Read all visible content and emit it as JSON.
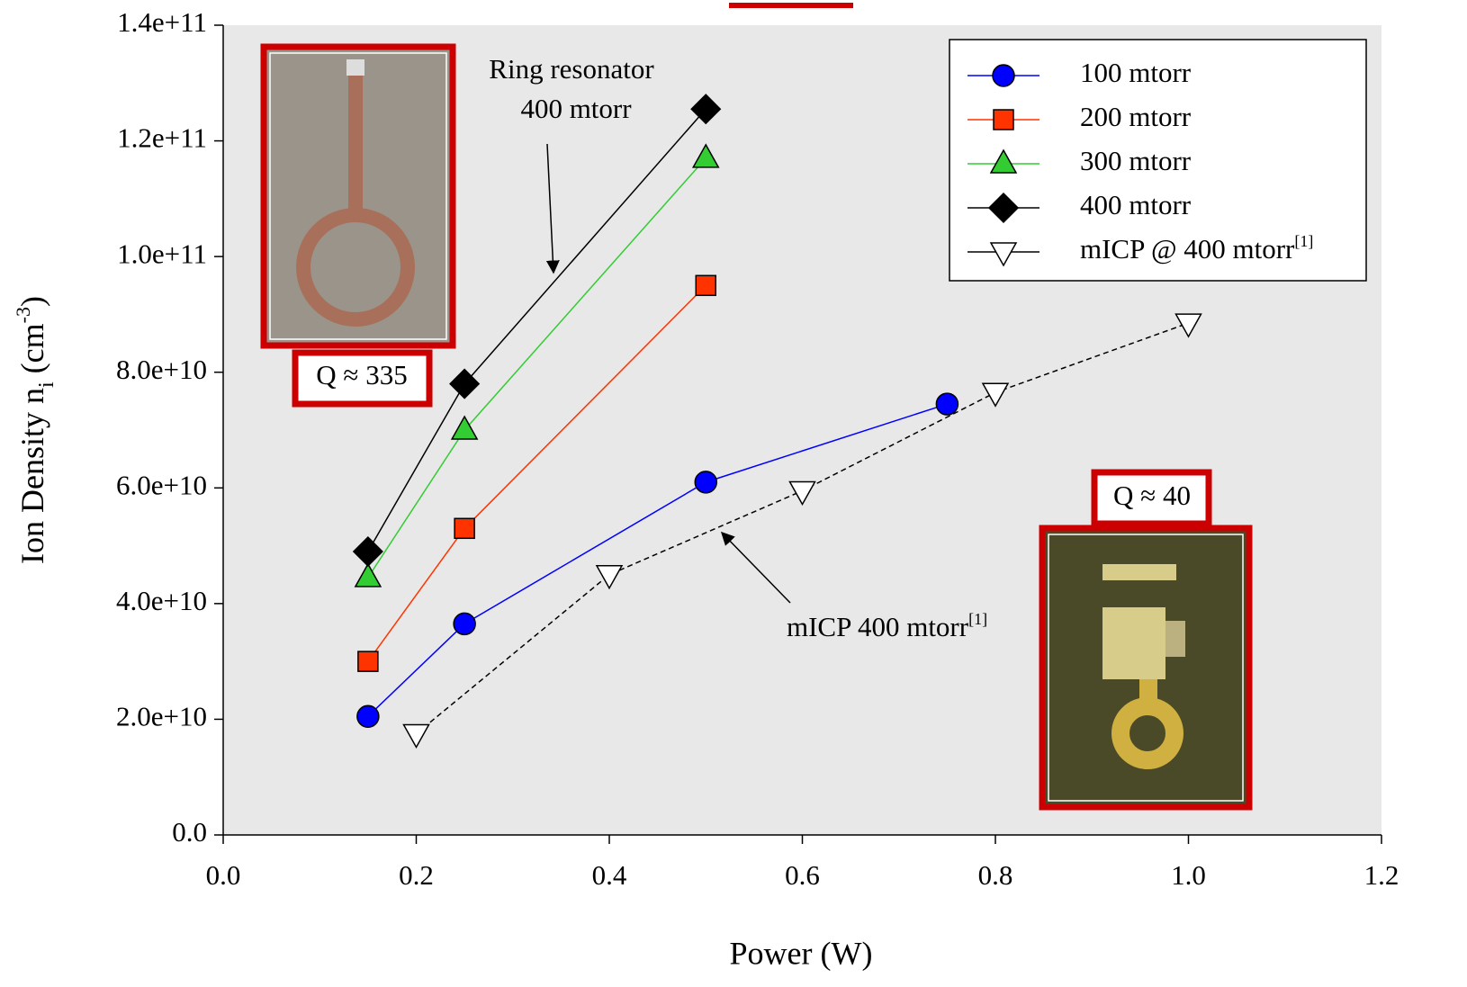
{
  "chart_data": {
    "type": "line",
    "x_label": "Power (W)",
    "y_label_parts": [
      "Ion Density n",
      "i",
      " (cm",
      "-3",
      ")"
    ],
    "xlim": [
      0,
      1.2
    ],
    "xticks": [
      {
        "value": 0,
        "label": "0.0"
      },
      0.2,
      0.4,
      0.6,
      0.8,
      {
        "value": 1,
        "label": "1.0"
      },
      1.2
    ],
    "ylim": [
      0,
      140000000000
    ],
    "yticks": [
      {
        "value": 0,
        "label": "0.0"
      },
      {
        "value": 20000000000,
        "label": "2.0e+10"
      },
      {
        "value": 40000000000,
        "label": "4.0e+10"
      },
      {
        "value": 60000000000,
        "label": "6.0e+10"
      },
      {
        "value": 80000000000,
        "label": "8.0e+10"
      },
      {
        "value": 100000000000,
        "label": "1.0e+11"
      },
      {
        "value": 120000000000,
        "label": "1.2e+11"
      },
      {
        "value": 140000000000,
        "label": "1.4e+11"
      }
    ],
    "legend": "upper right",
    "series": [
      {
        "name": "100 mtorr",
        "color": "#0000ff",
        "marker": "circle",
        "x": [
          0.15,
          0.25,
          0.5,
          0.75
        ],
        "values": [
          20500000000,
          36500000000,
          61000000000,
          74500000000
        ]
      },
      {
        "name": "200 mtorr",
        "color": "#ff3300",
        "marker": "square",
        "x": [
          0.15,
          0.25,
          0.5
        ],
        "values": [
          30000000000,
          53000000000,
          95000000000
        ]
      },
      {
        "name": "300 mtorr",
        "color": "#33cc33",
        "marker": "triangle",
        "x": [
          0.15,
          0.25,
          0.5
        ],
        "values": [
          44500000000,
          70000000000,
          117000000000
        ]
      },
      {
        "name": "400 mtorr",
        "color": "#000000",
        "marker": "diamond",
        "x": [
          0.15,
          0.25,
          0.5
        ],
        "values": [
          49000000000,
          78000000000,
          125500000000
        ]
      },
      {
        "name": "mICP @ 400 mtorr",
        "name_sup": "[1]",
        "color": "#000000",
        "marker": "triangle-down",
        "dashed": true,
        "x": [
          0.2,
          0.4,
          0.6,
          0.8,
          1.0
        ],
        "values": [
          17500000000,
          45000000000,
          59500000000,
          76500000000,
          88500000000
        ]
      }
    ],
    "annotations": [
      {
        "parts": [
          "Ring resonator"
        ]
      },
      {
        "parts": [
          "400 mtorr"
        ]
      },
      {
        "parts": [
          "mICP 400 mtorr",
          "[1]"
        ]
      },
      {
        "parts": [
          "Q ≈ 335"
        ]
      },
      {
        "parts": [
          "Q ≈ 40"
        ]
      }
    ]
  }
}
